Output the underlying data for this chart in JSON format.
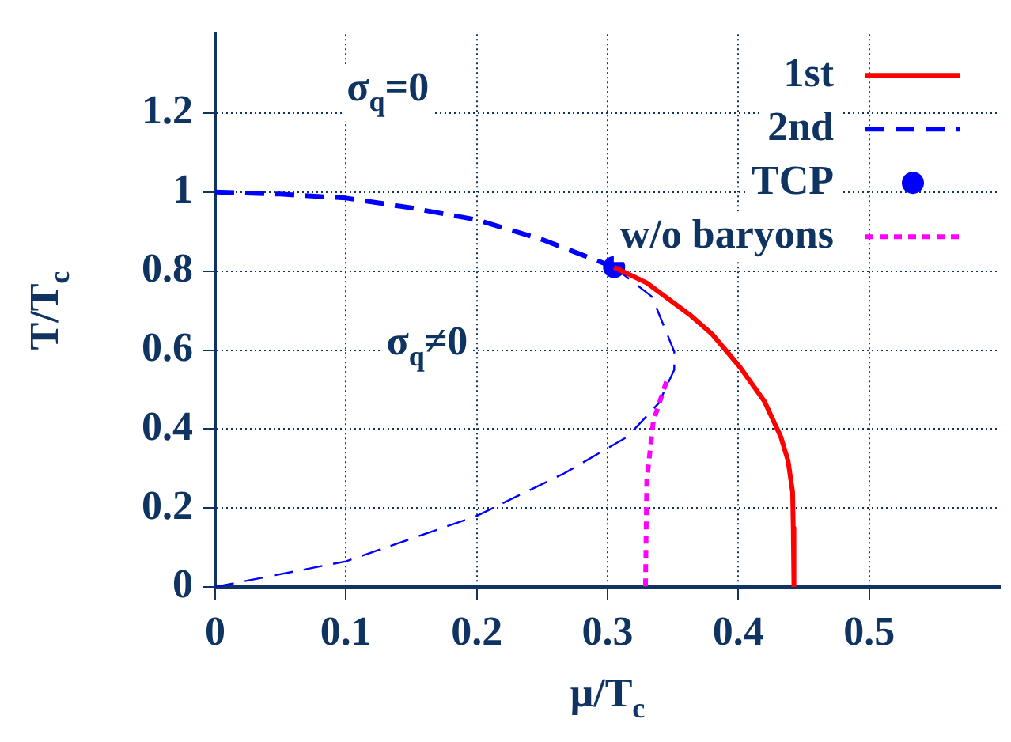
{
  "chart_data": {
    "type": "line",
    "xlabel": "μ/T$_{c}$",
    "ylabel": "T/T$_{c}$",
    "xlim": [
      0,
      0.6
    ],
    "xticks": [
      0,
      0.1,
      0.2,
      0.3,
      0.4,
      0.5
    ],
    "ylim": [
      0,
      1.4
    ],
    "yticks": [
      0,
      0.2,
      0.4,
      0.6,
      0.8,
      1,
      1.2
    ],
    "grid": true,
    "legend": "top right",
    "marker": "none",
    "series": [
      {
        "name": "1st",
        "color": "#ff0000",
        "line_style": "solid",
        "x": [
          0.305,
          0.33,
          0.363,
          0.38,
          0.401,
          0.42,
          0.4325,
          0.438,
          0.4415,
          0.442,
          0.4425
        ],
        "values": [
          0.81,
          0.77,
          0.689,
          0.64,
          0.558,
          0.47,
          0.38,
          0.32,
          0.24,
          0.15,
          0
        ]
      },
      {
        "name": "2nd",
        "color": "#0000ff",
        "line_style": "dashed",
        "x": [
          0,
          0.05,
          0.1,
          0.15,
          0.2,
          0.25,
          0.305
        ],
        "values": [
          1,
          0.995,
          0.985,
          0.96,
          0.93,
          0.88,
          0.81
        ]
      },
      {
        "name": "TCP",
        "type": "scatter",
        "marker": "circle",
        "color": "#0000ff",
        "x": [
          0.305
        ],
        "values": [
          0.81
        ]
      },
      {
        "name": "w/o baryons",
        "color": "#ff00ff",
        "line_style": "dotted",
        "x": [
          0.345,
          0.335,
          0.33,
          0.329
        ],
        "values": [
          0.52,
          0.42,
          0.27,
          0
        ]
      },
      {
        "color": "#0000ff",
        "line_style": "dashed",
        "x": [
          0.305,
          0.334,
          0.351,
          0.351,
          0.339,
          0.315,
          0.267,
          0.2,
          0.148,
          0.1,
          0
        ],
        "values": [
          0.81,
          0.735,
          0.596,
          0.55,
          0.465,
          0.38,
          0.288,
          0.18,
          0.12,
          0.065,
          0
        ]
      }
    ],
    "annotations": [
      "σ$_{q}$=0",
      "σ$_{q}$≠0"
    ]
  }
}
